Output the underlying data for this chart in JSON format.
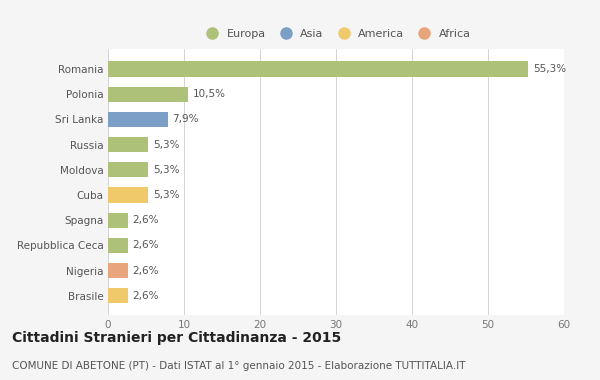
{
  "categories": [
    "Romania",
    "Polonia",
    "Sri Lanka",
    "Russia",
    "Moldova",
    "Cuba",
    "Spagna",
    "Repubblica Ceca",
    "Nigeria",
    "Brasile"
  ],
  "values": [
    55.3,
    10.5,
    7.9,
    5.3,
    5.3,
    5.3,
    2.6,
    2.6,
    2.6,
    2.6
  ],
  "labels": [
    "55,3%",
    "10,5%",
    "7,9%",
    "5,3%",
    "5,3%",
    "5,3%",
    "2,6%",
    "2,6%",
    "2,6%",
    "2,6%"
  ],
  "colors": [
    "#adc178",
    "#adc178",
    "#7b9fc7",
    "#adc178",
    "#adc178",
    "#f0c96b",
    "#adc178",
    "#adc178",
    "#e8a57c",
    "#f0c96b"
  ],
  "legend_items": [
    {
      "label": "Europa",
      "color": "#adc178"
    },
    {
      "label": "Asia",
      "color": "#7b9fc7"
    },
    {
      "label": "America",
      "color": "#f0c96b"
    },
    {
      "label": "Africa",
      "color": "#e8a57c"
    }
  ],
  "xlim": [
    0,
    60
  ],
  "xticks": [
    0,
    10,
    20,
    30,
    40,
    50,
    60
  ],
  "title": "Cittadini Stranieri per Cittadinanza - 2015",
  "subtitle": "COMUNE DI ABETONE (PT) - Dati ISTAT al 1° gennaio 2015 - Elaborazione TUTTITALIA.IT",
  "background_color": "#f5f5f5",
  "plot_bg_color": "#ffffff",
  "title_fontsize": 10,
  "subtitle_fontsize": 7.5,
  "label_fontsize": 7.5,
  "tick_fontsize": 7.5,
  "legend_fontsize": 8
}
